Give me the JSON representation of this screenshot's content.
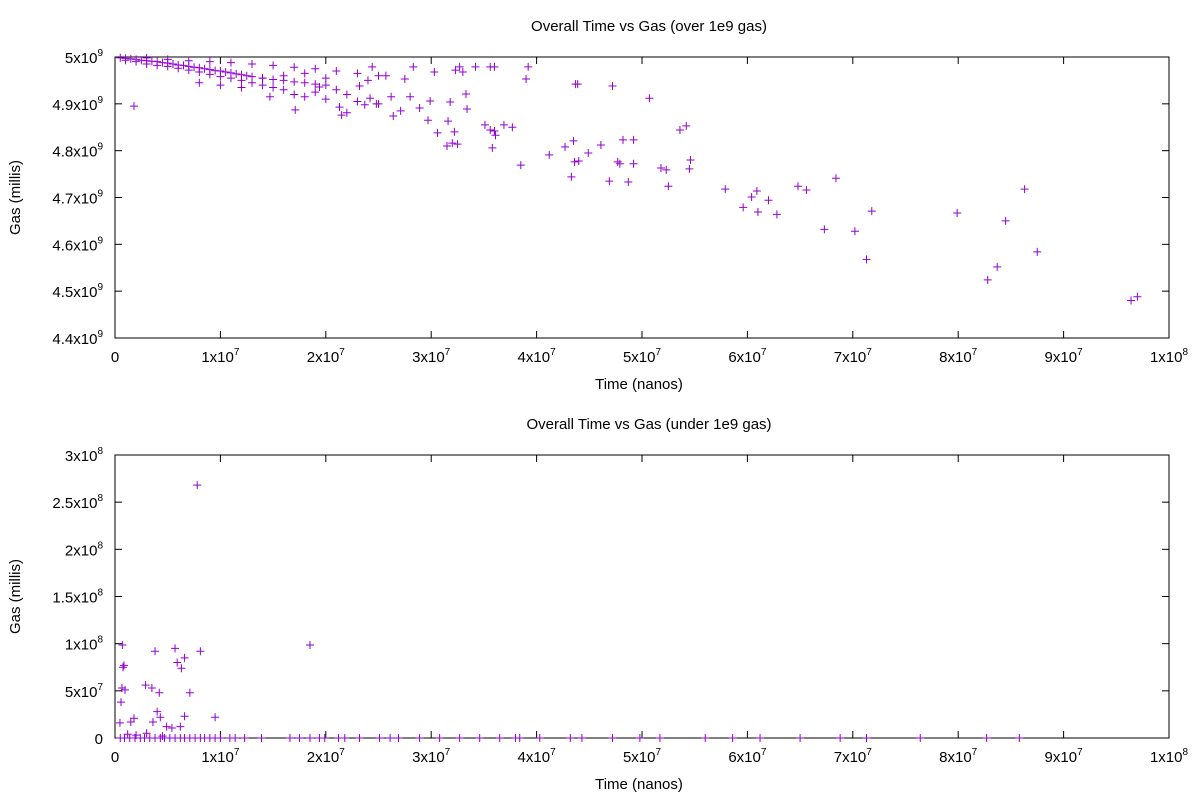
{
  "chart_data": [
    {
      "type": "scatter",
      "title": "Overall Time vs Gas (over 1e9 gas)",
      "xlabel": "Time (nanos)",
      "ylabel": "Gas (millis)",
      "color": "#9400d3",
      "xlim": [
        0,
        100000000
      ],
      "ylim": [
        4400000000,
        5000000000
      ],
      "xticks": [
        0,
        {
          "value": 10000000,
          "label": "1x10",
          "exp": "7"
        },
        {
          "value": 20000000,
          "label": "2x10",
          "exp": "7"
        },
        {
          "value": 30000000,
          "label": "3x10",
          "exp": "7"
        },
        {
          "value": 40000000,
          "label": "4x10",
          "exp": "7"
        },
        {
          "value": 50000000,
          "label": "5x10",
          "exp": "7"
        },
        {
          "value": 60000000,
          "label": "6x10",
          "exp": "7"
        },
        {
          "value": 70000000,
          "label": "7x10",
          "exp": "7"
        },
        {
          "value": 80000000,
          "label": "8x10",
          "exp": "7"
        },
        {
          "value": 90000000,
          "label": "9x10",
          "exp": "7"
        },
        {
          "value": 100000000,
          "label": "1x10",
          "exp": "8"
        }
      ],
      "yticks": [
        {
          "value": 4400000000,
          "label": "4.4x10",
          "exp": "9"
        },
        {
          "value": 4500000000,
          "label": "4.5x10",
          "exp": "9"
        },
        {
          "value": 4600000000,
          "label": "4.6x10",
          "exp": "9"
        },
        {
          "value": 4700000000,
          "label": "4.7x10",
          "exp": "9"
        },
        {
          "value": 4800000000,
          "label": "4.8x10",
          "exp": "9"
        },
        {
          "value": 4900000000,
          "label": "4.9x10",
          "exp": "9"
        },
        {
          "value": 5000000000,
          "label": "5x10",
          "exp": "9"
        }
      ],
      "x": [
        97000000,
        96400000,
        87500000,
        86300000,
        84500000,
        83700000,
        82800000,
        79900000,
        71800000,
        71300000,
        70200000,
        68400000,
        67300000,
        65600000,
        64800000,
        62800000,
        62000000,
        61000000,
        60900000,
        60400000,
        59600000,
        57900000,
        54600000,
        54500000,
        54200000,
        53600000,
        52500000,
        52300000,
        51800000,
        50700000,
        49200000,
        49200000,
        48700000,
        48200000,
        47900000,
        47700000,
        47200000,
        46900000,
        46100000,
        44900000,
        43900000,
        43700000,
        44000000,
        43600000,
        43500000,
        43300000,
        42700000,
        41200000,
        39200000,
        39000000,
        38500000,
        37700000,
        36900000,
        36100000,
        36000000,
        35800000,
        35600000,
        35100000,
        36000000,
        35600000,
        34200000,
        33400000,
        33300000,
        33000000,
        32700000,
        32300000,
        32500000,
        32000000,
        31500000,
        32200000,
        31600000,
        31800000,
        30300000,
        30600000,
        29700000,
        29900000,
        28900000,
        28300000,
        28000000,
        27500000,
        27100000,
        26400000,
        26200000,
        25700000,
        24400000,
        24800000,
        24200000,
        23700000,
        23200000,
        22000000,
        21500000,
        21300000,
        19400000,
        17100000,
        14700000,
        1800000,
        500000,
        1000000,
        1500000,
        2000000,
        2500000,
        3000000,
        3500000,
        4000000,
        4500000,
        5000000,
        5500000,
        6000000,
        6500000,
        7000000,
        7500000,
        8000000,
        8500000,
        9000000,
        9500000,
        10000000,
        10500000,
        11000000,
        11500000,
        12000000,
        12500000,
        13000000,
        14000000,
        15000000,
        16000000,
        17000000,
        18000000,
        19000000,
        20000000,
        1000000,
        2000000,
        3000000,
        4000000,
        5000000,
        6000000,
        7000000,
        8000000,
        9000000,
        10000000,
        11000000,
        12000000,
        13000000,
        14000000,
        15000000,
        16000000,
        17000000,
        18000000,
        19000000,
        20000000,
        21000000,
        22000000,
        23000000,
        24000000,
        25000000,
        3000000,
        5000000,
        7000000,
        9000000,
        11000000,
        13000000,
        15000000,
        17000000,
        19000000,
        21000000,
        23000000,
        25000000,
        8000000,
        10000000,
        12000000,
        14000000,
        16000000,
        18000000,
        20000000
      ],
      "values": [
        4488000000,
        4480000000,
        4584000000,
        4718000000,
        4650000000,
        4552000000,
        4524000000,
        4667000000,
        4671000000,
        4568000000,
        4628000000,
        4741000000,
        4632000000,
        4716000000,
        4724000000,
        4664000000,
        4694000000,
        4669000000,
        4714000000,
        4701000000,
        4679000000,
        4718000000,
        4780000000,
        4761000000,
        4853000000,
        4844000000,
        4724000000,
        4759000000,
        4763000000,
        4912000000,
        4772000000,
        4823000000,
        4733000000,
        4823000000,
        4772000000,
        4776000000,
        4938000000,
        4735000000,
        4812000000,
        4795000000,
        4942000000,
        4942000000,
        4778000000,
        4776000000,
        4821000000,
        4744000000,
        4808000000,
        4791000000,
        4979000000,
        4953000000,
        4769000000,
        4850000000,
        4855000000,
        4833000000,
        4842000000,
        4806000000,
        4844000000,
        4855000000,
        4979000000,
        4979000000,
        4979000000,
        4889000000,
        4921000000,
        4968000000,
        4979000000,
        4972000000,
        4814000000,
        4816000000,
        4810000000,
        4840000000,
        4863000000,
        4904000000,
        4968000000,
        4838000000,
        4865000000,
        4906000000,
        4891000000,
        4979000000,
        4915000000,
        4953000000,
        4885000000,
        4874000000,
        4915000000,
        4960000000,
        4979000000,
        4900000000,
        4912000000,
        4898000000,
        4938000000,
        4881000000,
        4876000000,
        4893000000,
        4936000000,
        4887000000,
        4915000000,
        4895000000,
        4998000000,
        4997000000,
        4996000000,
        4995000000,
        4993000000,
        4992000000,
        4991000000,
        4990000000,
        4988000000,
        4987000000,
        4985000000,
        4983000000,
        4982000000,
        4980000000,
        4978000000,
        4977000000,
        4975000000,
        4973000000,
        4971000000,
        4970000000,
        4968000000,
        4966000000,
        4964000000,
        4962000000,
        4960000000,
        4958000000,
        4955000000,
        4952000000,
        4950000000,
        4947000000,
        4945000000,
        4942000000,
        4940000000,
        4993000000,
        4990000000,
        4985000000,
        4982000000,
        4980000000,
        4976000000,
        4972000000,
        4968000000,
        4963000000,
        4958000000,
        4955000000,
        4950000000,
        4945000000,
        4940000000,
        4935000000,
        4930000000,
        4920000000,
        4915000000,
        4925000000,
        4910000000,
        4930000000,
        4920000000,
        4905000000,
        4950000000,
        4900000000,
        4998000000,
        4995000000,
        4992000000,
        4990000000,
        4988000000,
        4985000000,
        4982000000,
        4978000000,
        4975000000,
        4970000000,
        4965000000,
        4960000000,
        4945000000,
        4940000000,
        4935000000,
        4955000000,
        4960000000,
        4965000000,
        4955000000
      ]
    },
    {
      "type": "scatter",
      "title": "Overall Time vs Gas (under 1e9 gas)",
      "xlabel": "Time (nanos)",
      "ylabel": "Gas (millis)",
      "color": "#9400d3",
      "xlim": [
        0,
        100000000
      ],
      "ylim": [
        0,
        300000000
      ],
      "xticks": [
        0,
        {
          "value": 10000000,
          "label": "1x10",
          "exp": "7"
        },
        {
          "value": 20000000,
          "label": "2x10",
          "exp": "7"
        },
        {
          "value": 30000000,
          "label": "3x10",
          "exp": "7"
        },
        {
          "value": 40000000,
          "label": "4x10",
          "exp": "7"
        },
        {
          "value": 50000000,
          "label": "5x10",
          "exp": "7"
        },
        {
          "value": 60000000,
          "label": "6x10",
          "exp": "7"
        },
        {
          "value": 70000000,
          "label": "7x10",
          "exp": "7"
        },
        {
          "value": 80000000,
          "label": "8x10",
          "exp": "7"
        },
        {
          "value": 90000000,
          "label": "9x10",
          "exp": "7"
        },
        {
          "value": 100000000,
          "label": "1x10",
          "exp": "8"
        }
      ],
      "yticks": [
        0,
        {
          "value": 50000000,
          "label": "5x10",
          "exp": "7"
        },
        {
          "value": 100000000,
          "label": "1x10",
          "exp": "8"
        },
        {
          "value": 150000000,
          "label": "1.5x10",
          "exp": "8"
        },
        {
          "value": 200000000,
          "label": "2x10",
          "exp": "8"
        },
        {
          "value": 250000000,
          "label": "2.5x10",
          "exp": "8"
        },
        {
          "value": 300000000,
          "label": "3x10",
          "exp": "8"
        }
      ],
      "x": [
        7800000,
        18500000,
        700000,
        5700000,
        3800000,
        8100000,
        5900000,
        6600000,
        6300000,
        760000,
        850000,
        660000,
        950000,
        570000,
        2900000,
        3500000,
        4200000,
        7100000,
        9500000,
        4000000,
        4300000,
        3600000,
        1800000,
        1500000,
        470000,
        4900000,
        6200000,
        5400000,
        6600000,
        1200000,
        2000000,
        3000000,
        4500000,
        500000,
        900000,
        1400000,
        1900000,
        2400000,
        2800000,
        3300000,
        3800000,
        4300000,
        4700000,
        5200000,
        5700000,
        6200000,
        6600000,
        7100000,
        7600000,
        8100000,
        8500000,
        9000000,
        9500000,
        10000000,
        10900000,
        11400000,
        12300000,
        13900000,
        16600000,
        17500000,
        18500000,
        19400000,
        19900000,
        21200000,
        21800000,
        23200000,
        25100000,
        26100000,
        26900000,
        28900000,
        30800000,
        32700000,
        34600000,
        36500000,
        38000000,
        38400000,
        40300000,
        43200000,
        44300000,
        47200000,
        49800000,
        51700000,
        56000000,
        58600000,
        61200000,
        65000000,
        68800000,
        71300000,
        76400000,
        82700000,
        85800000
      ],
      "values": [
        268000000,
        98600000,
        98600000,
        95000000,
        92000000,
        92000000,
        80000000,
        85000000,
        74000000,
        75000000,
        77000000,
        53000000,
        51000000,
        38000000,
        56000000,
        53000000,
        48000000,
        48000000,
        22000000,
        28000000,
        22000000,
        17000000,
        21000000,
        17000000,
        16000000,
        12000000,
        12000000,
        10600000,
        23000000,
        4000000,
        3000000,
        5000000,
        2000000,
        0,
        0,
        0,
        0,
        0,
        0,
        0,
        0,
        0,
        0,
        0,
        0,
        0,
        0,
        0,
        0,
        0,
        0,
        0,
        0,
        0,
        0,
        0,
        0,
        0,
        0,
        0,
        0,
        0,
        0,
        0,
        0,
        0,
        0,
        0,
        0,
        0,
        0,
        0,
        0,
        0,
        0,
        0,
        0,
        0,
        0,
        0,
        0,
        0,
        0,
        0,
        0,
        0,
        0,
        0,
        0,
        0,
        0
      ]
    }
  ]
}
